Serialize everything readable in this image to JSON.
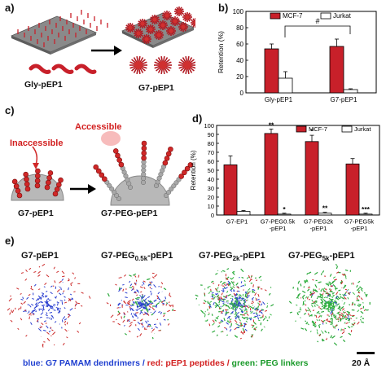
{
  "panels": {
    "a": {
      "letter": "a)",
      "label_left": "Gly-pEP1",
      "label_right": "G7-pEP1"
    },
    "c": {
      "letter": "c)",
      "inaccessible": "Inaccessible",
      "accessible": "Accessible",
      "label_left": "G7-pEP1",
      "label_right": "G7-PEG-pEP1"
    },
    "e": {
      "letter": "e)",
      "titles": [
        "G7-pEP1",
        "G7-PEG",
        "0.5k",
        "-pEP1",
        "G7-PEG",
        "2k",
        "-pEP1",
        "G7-PEG",
        "5k",
        "-pEP1"
      ],
      "caption": {
        "blue_word": "blue",
        "blue_text": ": G7 PAMAM dendrimers / ",
        "red_word": "red",
        "red_text": ": pEP1 peptides / ",
        "green_word": "green",
        "green_text": ": PEG linkers"
      },
      "scale_bar": "20 Å"
    }
  },
  "colors": {
    "mcf7": "#c8202a",
    "jurkat": "#ffffff",
    "dendrimer": "#2a3fd0",
    "peptide": "#cc2a2a",
    "peg": "#2aa83a"
  },
  "chart_data": [
    {
      "panel": "b)",
      "type": "bar",
      "categories": [
        "Gly-pEP1",
        "G7-pEP1"
      ],
      "series": [
        {
          "name": "MCF-7",
          "values": [
            54,
            57
          ],
          "errors": [
            6,
            9
          ]
        },
        {
          "name": "Jurkat",
          "values": [
            18,
            4
          ],
          "errors": [
            8,
            1
          ]
        }
      ],
      "ylabel": "Retention (%)",
      "ylim": [
        0,
        100
      ],
      "yticks": [
        "0",
        "20",
        "40",
        "60",
        "80",
        "100"
      ],
      "annotations": [
        "#"
      ],
      "legend_position": "top-right"
    },
    {
      "panel": "d)",
      "type": "bar",
      "categories": [
        [
          "G7-EP1"
        ],
        [
          "G7-PEG0.5k",
          "-pEP1"
        ],
        [
          "G7-PEG2k",
          "-pEP1"
        ],
        [
          "G7-PEG5k",
          "-pEP1"
        ]
      ],
      "series": [
        {
          "name": "MCF-7",
          "values": [
            56,
            91,
            82,
            57
          ],
          "errors": [
            10,
            5,
            7,
            6
          ]
        },
        {
          "name": "Jurkat",
          "values": [
            4,
            1,
            2,
            1
          ],
          "errors": [
            1,
            1,
            1,
            1
          ]
        }
      ],
      "mcf7_marks": [
        "",
        "**",
        "*",
        ""
      ],
      "jurkat_marks": [
        "",
        "*",
        "**",
        "***"
      ],
      "ylabel": "Retention (%)",
      "ylim": [
        0,
        100
      ],
      "yticks": [
        "0",
        "10",
        "20",
        "30",
        "40",
        "50",
        "60",
        "70",
        "80",
        "90",
        "100"
      ],
      "legend_position": "top-right"
    }
  ]
}
